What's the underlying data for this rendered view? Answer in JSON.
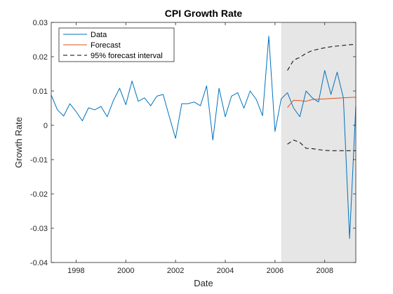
{
  "chart_data": {
    "type": "line",
    "title": "CPI Growth Rate",
    "xlabel": "Date",
    "ylabel": "Growth Rate",
    "xlim": [
      1997.0,
      2009.25
    ],
    "ylim": [
      -0.04,
      0.03
    ],
    "x_ticks": [
      1998,
      2000,
      2002,
      2004,
      2006,
      2008
    ],
    "y_ticks": [
      -0.04,
      -0.03,
      -0.02,
      -0.01,
      0,
      0.01,
      0.02,
      0.03
    ],
    "y_tick_labels": [
      "-0.04",
      "-0.03",
      "-0.02",
      "-0.01",
      "0",
      "0.01",
      "0.02",
      "0.03"
    ],
    "grid": false,
    "legend_position": "top-left",
    "forecast_region": [
      2006.25,
      2009.25
    ],
    "colors": {
      "data": "#0072BD",
      "forecast": "#D95319",
      "interval": "#000000",
      "shade": "#E6E6E6"
    },
    "series": [
      {
        "name": "Data",
        "style": "solid",
        "x": [
          1997.0,
          1997.25,
          1997.5,
          1997.75,
          1998.0,
          1998.25,
          1998.5,
          1998.75,
          1999.0,
          1999.25,
          1999.5,
          1999.75,
          2000.0,
          2000.25,
          2000.5,
          2000.75,
          2001.0,
          2001.25,
          2001.5,
          2001.75,
          2002.0,
          2002.25,
          2002.5,
          2002.75,
          2003.0,
          2003.25,
          2003.5,
          2003.75,
          2004.0,
          2004.25,
          2004.5,
          2004.75,
          2005.0,
          2005.25,
          2005.5,
          2005.75,
          2006.0,
          2006.25,
          2006.5,
          2006.75,
          2007.0,
          2007.25,
          2007.5,
          2007.75,
          2008.0,
          2008.25,
          2008.5,
          2008.75,
          2009.0,
          2009.25
        ],
        "y": [
          0.0088,
          0.0045,
          0.0027,
          0.0063,
          0.004,
          0.0013,
          0.0051,
          0.0045,
          0.0055,
          0.0025,
          0.0072,
          0.0108,
          0.006,
          0.0129,
          0.007,
          0.008,
          0.0057,
          0.0085,
          0.009,
          0.0025,
          -0.0038,
          0.0063,
          0.0063,
          0.0068,
          0.0057,
          0.0115,
          -0.0043,
          0.0108,
          0.0025,
          0.0085,
          0.0095,
          0.005,
          0.01,
          0.0075,
          0.0028,
          0.026,
          -0.0018,
          0.0077,
          0.0095,
          0.005,
          0.0025,
          0.01,
          0.008,
          0.0068,
          0.016,
          0.009,
          0.0155,
          0.008,
          -0.033,
          0.0055
        ]
      },
      {
        "name": "Forecast",
        "style": "solid",
        "x": [
          2006.5,
          2006.75,
          2007.0,
          2007.25,
          2007.5,
          2007.75,
          2008.0,
          2008.25,
          2008.5,
          2008.75,
          2009.0,
          2009.25
        ],
        "y": [
          0.0052,
          0.0073,
          0.0072,
          0.007,
          0.0075,
          0.0076,
          0.0077,
          0.0078,
          0.0079,
          0.008,
          0.0081,
          0.0082
        ]
      },
      {
        "name": "95% forecast interval",
        "style": "dashed",
        "x": [
          2006.5,
          2006.75,
          2007.0,
          2007.25,
          2007.5,
          2007.75,
          2008.0,
          2008.25,
          2008.5,
          2008.75,
          2009.0,
          2009.25
        ],
        "y": [
          0.016,
          0.019,
          0.0198,
          0.021,
          0.0218,
          0.0222,
          0.0226,
          0.0229,
          0.0231,
          0.0233,
          0.0235,
          0.0236
        ]
      },
      {
        "name": "",
        "style": "dashed",
        "x": [
          2006.5,
          2006.75,
          2007.0,
          2007.25,
          2007.5,
          2007.75,
          2008.0,
          2008.25,
          2008.5,
          2008.75,
          2009.0,
          2009.25
        ],
        "y": [
          -0.0055,
          -0.0043,
          -0.005,
          -0.0067,
          -0.0068,
          -0.0071,
          -0.0073,
          -0.0074,
          -0.0074,
          -0.0074,
          -0.0074,
          -0.0074
        ]
      }
    ]
  }
}
